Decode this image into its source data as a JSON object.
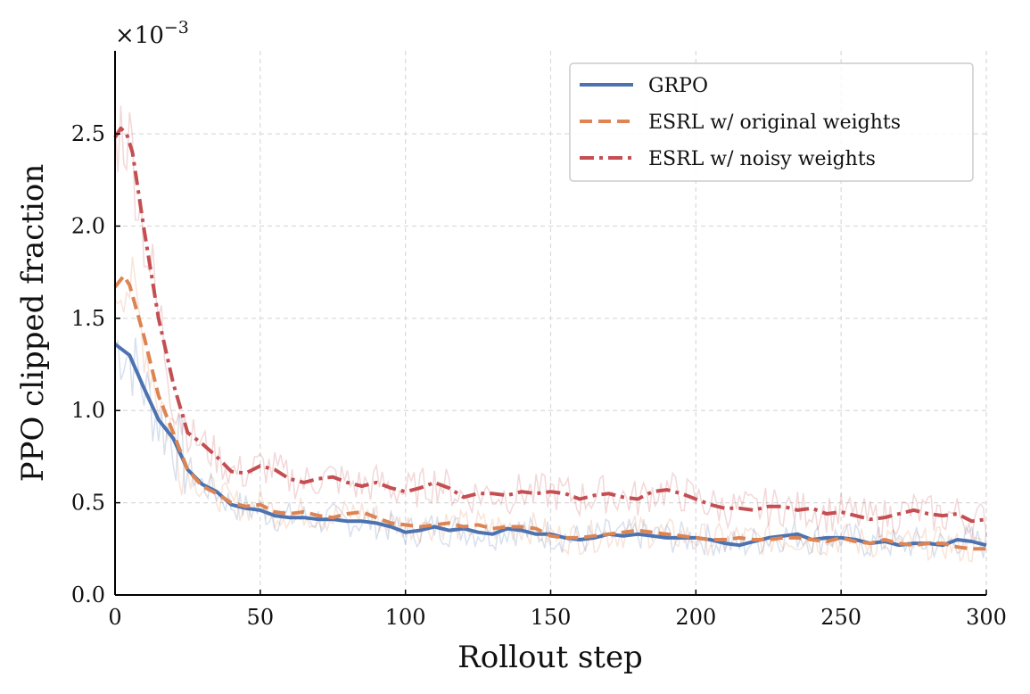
{
  "chart_data": {
    "type": "line",
    "xlabel": "Rollout step",
    "ylabel": "PPO clipped fraction",
    "scale_prefix": "×10",
    "scale_exponent": "−3",
    "xlim": [
      0,
      300
    ],
    "ylim": [
      0,
      2.95
    ],
    "xticks": [
      0,
      50,
      100,
      150,
      200,
      250,
      300
    ],
    "xtick_labels": [
      "0",
      "50",
      "100",
      "150",
      "200",
      "250",
      "300"
    ],
    "yticks": [
      0,
      0.5,
      1.0,
      1.5,
      2.0,
      2.5
    ],
    "ytick_labels": [
      "0.0",
      "0.5",
      "1.0",
      "1.5",
      "2.0",
      "2.5"
    ],
    "grid": true,
    "legend_position": "top-right",
    "series": [
      {
        "name": "GRPO",
        "color": "#4c72b0",
        "dash": "solid",
        "x": [
          0,
          5,
          10,
          15,
          20,
          25,
          30,
          35,
          40,
          45,
          50,
          55,
          60,
          65,
          70,
          75,
          80,
          85,
          90,
          95,
          100,
          105,
          110,
          115,
          120,
          125,
          130,
          135,
          140,
          145,
          150,
          155,
          160,
          165,
          170,
          175,
          180,
          185,
          190,
          195,
          200,
          205,
          210,
          215,
          220,
          225,
          230,
          235,
          240,
          245,
          250,
          255,
          260,
          265,
          270,
          275,
          280,
          285,
          290,
          295,
          300
        ],
        "y": [
          1.36,
          1.3,
          1.12,
          0.95,
          0.85,
          0.68,
          0.6,
          0.56,
          0.49,
          0.47,
          0.46,
          0.43,
          0.42,
          0.42,
          0.41,
          0.41,
          0.4,
          0.4,
          0.39,
          0.37,
          0.34,
          0.35,
          0.37,
          0.35,
          0.36,
          0.34,
          0.33,
          0.36,
          0.35,
          0.33,
          0.33,
          0.31,
          0.3,
          0.31,
          0.33,
          0.32,
          0.33,
          0.32,
          0.31,
          0.31,
          0.31,
          0.3,
          0.28,
          0.27,
          0.29,
          0.31,
          0.32,
          0.33,
          0.3,
          0.31,
          0.31,
          0.3,
          0.28,
          0.29,
          0.27,
          0.28,
          0.28,
          0.27,
          0.3,
          0.29,
          0.27
        ]
      },
      {
        "name": "ESRL w/ original weights",
        "color": "#dd8452",
        "dash": "dashed",
        "x": [
          0,
          3,
          5,
          10,
          15,
          20,
          25,
          30,
          35,
          40,
          45,
          50,
          55,
          60,
          65,
          70,
          75,
          80,
          85,
          90,
          95,
          100,
          105,
          110,
          115,
          120,
          125,
          130,
          135,
          140,
          145,
          150,
          155,
          160,
          165,
          170,
          175,
          180,
          185,
          190,
          195,
          200,
          205,
          210,
          215,
          220,
          225,
          230,
          235,
          240,
          245,
          250,
          255,
          260,
          265,
          270,
          275,
          280,
          285,
          290,
          295,
          300
        ],
        "y": [
          1.67,
          1.73,
          1.68,
          1.4,
          1.08,
          0.88,
          0.68,
          0.59,
          0.55,
          0.5,
          0.48,
          0.49,
          0.45,
          0.44,
          0.45,
          0.43,
          0.42,
          0.44,
          0.45,
          0.42,
          0.39,
          0.38,
          0.37,
          0.38,
          0.39,
          0.37,
          0.38,
          0.36,
          0.37,
          0.37,
          0.36,
          0.32,
          0.31,
          0.31,
          0.32,
          0.33,
          0.34,
          0.35,
          0.34,
          0.33,
          0.32,
          0.31,
          0.3,
          0.3,
          0.31,
          0.3,
          0.3,
          0.31,
          0.31,
          0.3,
          0.29,
          0.31,
          0.29,
          0.28,
          0.3,
          0.28,
          0.27,
          0.28,
          0.28,
          0.26,
          0.25,
          0.25
        ]
      },
      {
        "name": "ESRL w/ noisy weights",
        "color": "#c44e52",
        "dash": "dashdot",
        "x": [
          0,
          2,
          4,
          6,
          10,
          15,
          20,
          25,
          30,
          35,
          40,
          45,
          50,
          55,
          60,
          65,
          70,
          75,
          80,
          85,
          90,
          95,
          100,
          105,
          110,
          115,
          120,
          125,
          130,
          135,
          140,
          145,
          150,
          155,
          160,
          165,
          170,
          175,
          180,
          185,
          190,
          195,
          200,
          205,
          210,
          215,
          220,
          225,
          230,
          235,
          240,
          245,
          250,
          255,
          260,
          265,
          270,
          275,
          280,
          285,
          290,
          295,
          300
        ],
        "y": [
          2.48,
          2.53,
          2.5,
          2.4,
          1.98,
          1.5,
          1.15,
          0.88,
          0.82,
          0.75,
          0.67,
          0.66,
          0.7,
          0.68,
          0.63,
          0.61,
          0.63,
          0.64,
          0.61,
          0.59,
          0.61,
          0.58,
          0.56,
          0.58,
          0.61,
          0.58,
          0.53,
          0.55,
          0.55,
          0.54,
          0.56,
          0.55,
          0.56,
          0.55,
          0.52,
          0.54,
          0.55,
          0.53,
          0.52,
          0.56,
          0.57,
          0.55,
          0.52,
          0.49,
          0.47,
          0.47,
          0.46,
          0.48,
          0.48,
          0.46,
          0.47,
          0.44,
          0.45,
          0.43,
          0.41,
          0.42,
          0.44,
          0.46,
          0.44,
          0.43,
          0.44,
          0.4,
          0.41
        ]
      }
    ]
  }
}
